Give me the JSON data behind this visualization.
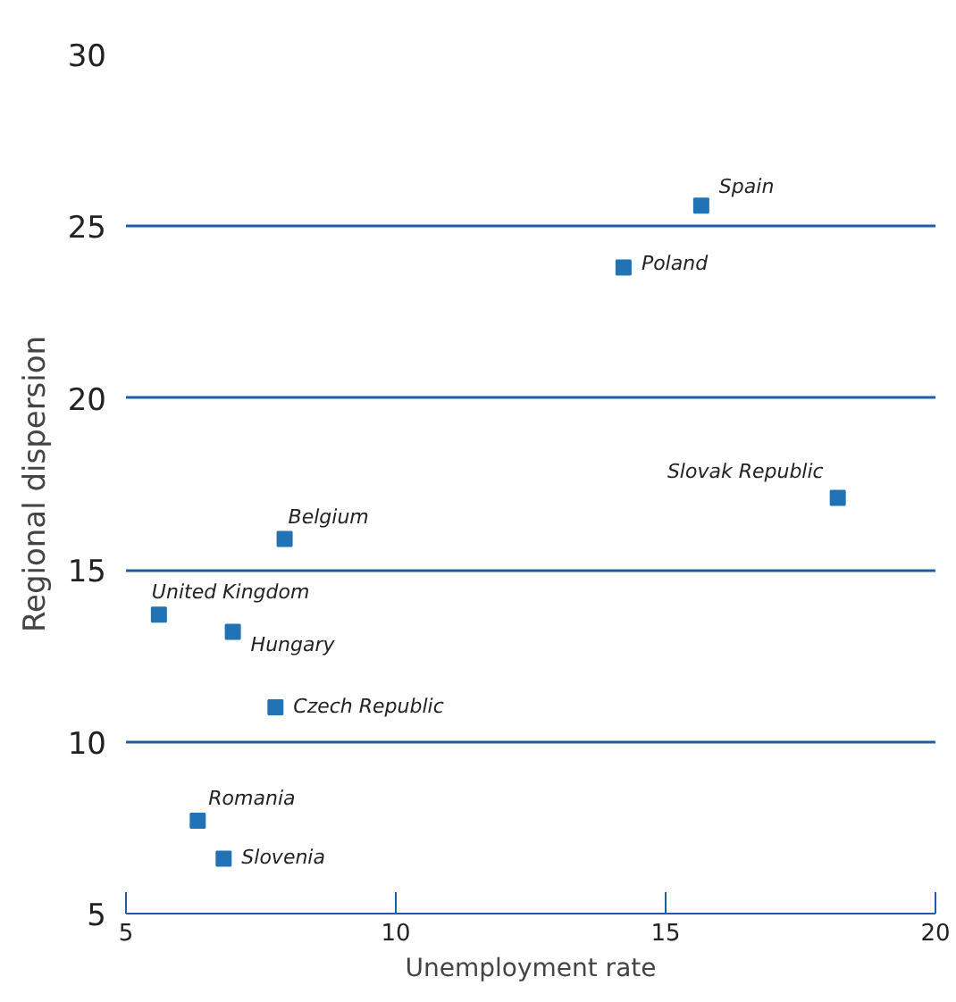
{
  "chart_data": {
    "type": "scatter",
    "xlabel": "Unemployment rate",
    "ylabel": "Regional dispersion",
    "x": [
      15.66,
      14.22,
      18.19,
      7.94,
      5.61,
      6.98,
      7.77,
      6.33,
      6.81
    ],
    "series": [
      {
        "color": "#2273b5",
        "values": [
          25.6,
          23.8,
          17.1,
          15.9,
          13.7,
          13.2,
          11.0,
          7.7,
          6.6
        ]
      }
    ],
    "annotations": [
      {
        "text": "Spain",
        "x": 15.66,
        "y": 25.6
      },
      {
        "text": "Poland",
        "x": 14.22,
        "y": 23.8
      },
      {
        "text": "Slovak Republic",
        "x": 18.19,
        "y": 17.1
      },
      {
        "text": "Belgium",
        "x": 7.94,
        "y": 15.9
      },
      {
        "text": "United Kingdom",
        "x": 5.61,
        "y": 13.7
      },
      {
        "text": "Hungary",
        "x": 6.98,
        "y": 13.2
      },
      {
        "text": "Czech Republic",
        "x": 7.77,
        "y": 11.0
      },
      {
        "text": "Romania",
        "x": 6.33,
        "y": 7.7
      },
      {
        "text": "Slovenia",
        "x": 6.81,
        "y": 6.6
      }
    ],
    "xlim": [
      5,
      20
    ],
    "ylim": [
      5,
      30
    ],
    "xticks": [
      5,
      10,
      15,
      20
    ],
    "yticks": [
      5,
      10,
      15,
      20,
      25,
      30
    ],
    "grid": "y",
    "marker": "square"
  }
}
